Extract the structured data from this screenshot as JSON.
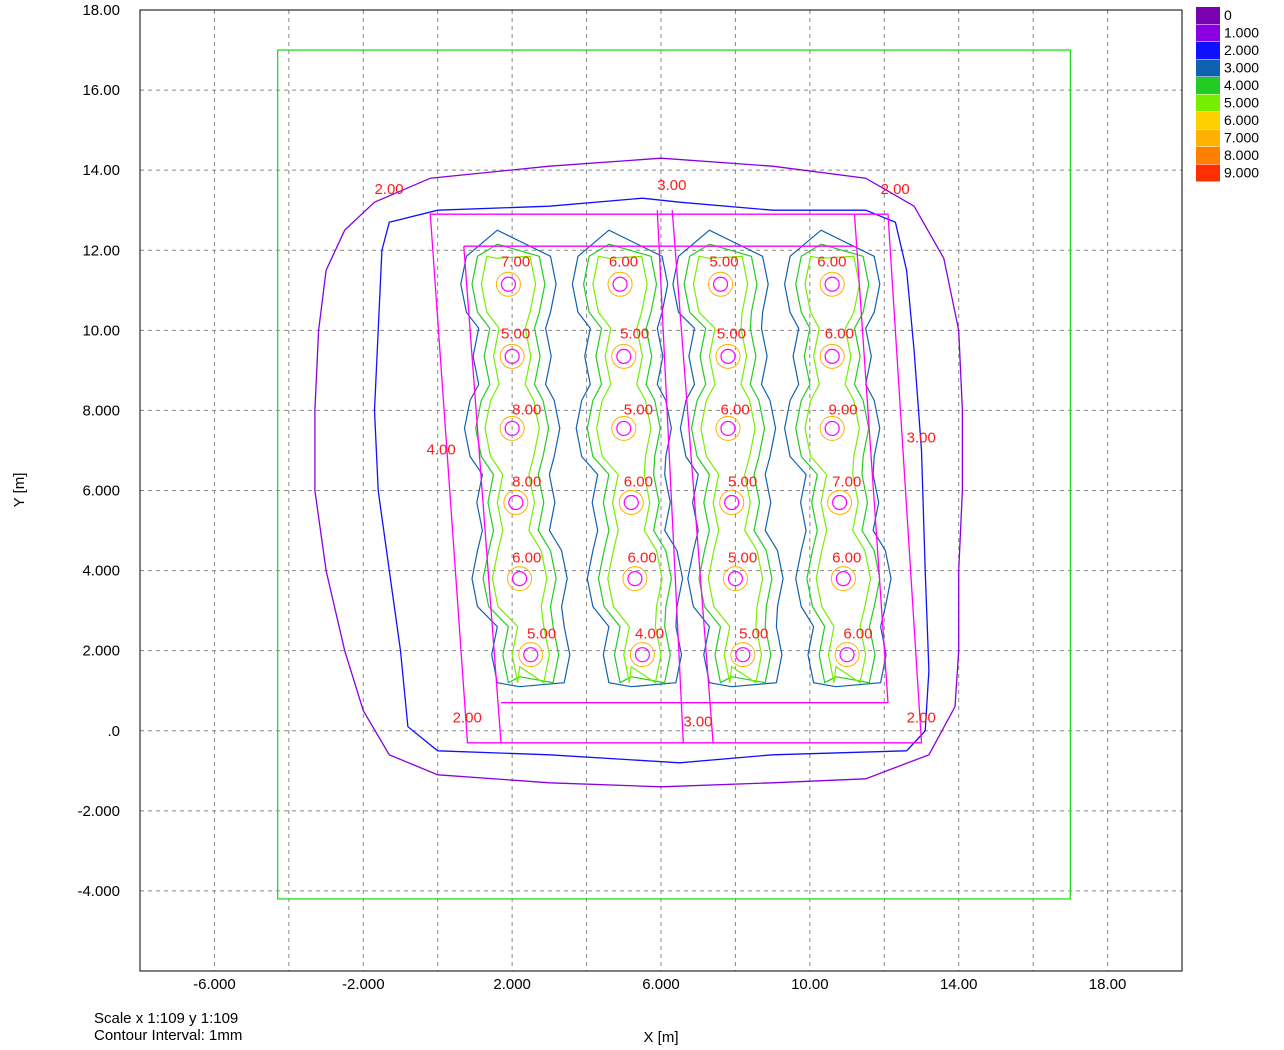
{
  "chart_data": {
    "type": "contour",
    "xlabel": "X [m]",
    "ylabel": "Y [m]",
    "xlim": [
      -8,
      20
    ],
    "ylim": [
      -6,
      18
    ],
    "x_ticks": [
      -6,
      -2,
      2,
      6,
      10,
      14,
      18
    ],
    "x_tick_labels": [
      "-6.000",
      "-2.000",
      "2.000",
      "6.000",
      "10.00",
      "14.00",
      "18.00"
    ],
    "y_ticks": [
      18,
      16,
      14,
      12,
      10,
      8,
      6,
      4,
      2,
      0,
      -2,
      -4
    ],
    "y_tick_labels": [
      "18.00",
      "16.00",
      "14.00",
      "12.00",
      "10.00",
      "8.000",
      "6.000",
      "4.000",
      "2.000",
      ".0",
      "-2.000",
      "-4.000"
    ],
    "grid": true,
    "legend_position": "top-right",
    "legend": [
      {
        "label": "0",
        "color": "#7a00b0"
      },
      {
        "label": "1.000",
        "color": "#8a00e0"
      },
      {
        "label": "2.000",
        "color": "#1010ff"
      },
      {
        "label": "3.000",
        "color": "#1060b0"
      },
      {
        "label": "4.000",
        "color": "#22cc22"
      },
      {
        "label": "5.000",
        "color": "#77ee00"
      },
      {
        "label": "6.000",
        "color": "#ffd000"
      },
      {
        "label": "7.000",
        "color": "#ffb000"
      },
      {
        "label": "8.000",
        "color": "#ff8000"
      },
      {
        "label": "9.000",
        "color": "#ff3000"
      }
    ],
    "boundary_rect": {
      "x": [
        -4.3,
        17.0
      ],
      "y": [
        -4.2,
        17.0
      ],
      "color": "#22dd22"
    },
    "outer_contours": [
      {
        "level": 1,
        "color": "#8a00e0",
        "points": [
          [
            -1.7,
            13.2
          ],
          [
            -0.2,
            13.8
          ],
          [
            3,
            14.1
          ],
          [
            6,
            14.3
          ],
          [
            9,
            14.1
          ],
          [
            11.5,
            13.8
          ],
          [
            12.8,
            13.1
          ],
          [
            13.6,
            11.8
          ],
          [
            14.0,
            10
          ],
          [
            14.1,
            8
          ],
          [
            14.1,
            6
          ],
          [
            14.0,
            4
          ],
          [
            14.0,
            2
          ],
          [
            13.9,
            0.6
          ],
          [
            13.2,
            -0.6
          ],
          [
            11.5,
            -1.2
          ],
          [
            9,
            -1.3
          ],
          [
            6,
            -1.4
          ],
          [
            3,
            -1.3
          ],
          [
            0,
            -1.1
          ],
          [
            -1.3,
            -0.6
          ],
          [
            -2.0,
            0.5
          ],
          [
            -2.5,
            2
          ],
          [
            -3.0,
            4
          ],
          [
            -3.3,
            6
          ],
          [
            -3.3,
            8
          ],
          [
            -3.2,
            10
          ],
          [
            -3.0,
            11.5
          ],
          [
            -2.5,
            12.5
          ]
        ]
      },
      {
        "level": 2,
        "color": "#1010ff",
        "points": [
          [
            -1.3,
            12.7
          ],
          [
            0,
            13.0
          ],
          [
            3,
            13.1
          ],
          [
            5.5,
            13.3
          ],
          [
            6.5,
            13.2
          ],
          [
            9,
            13.0
          ],
          [
            11.5,
            13.0
          ],
          [
            12.3,
            12.7
          ],
          [
            12.6,
            11.5
          ],
          [
            12.8,
            9.5
          ],
          [
            13.0,
            7
          ],
          [
            13.1,
            4
          ],
          [
            13.2,
            1.5
          ],
          [
            13.1,
            0
          ],
          [
            12.6,
            -0.5
          ],
          [
            9,
            -0.6
          ],
          [
            6.5,
            -0.8
          ],
          [
            3,
            -0.6
          ],
          [
            0,
            -0.5
          ],
          [
            -0.8,
            0.1
          ],
          [
            -1.0,
            2
          ],
          [
            -1.3,
            4
          ],
          [
            -1.6,
            6
          ],
          [
            -1.7,
            8
          ],
          [
            -1.6,
            10
          ],
          [
            -1.5,
            12
          ]
        ]
      }
    ],
    "rect_outline": {
      "color": "#ff00ff",
      "points": [
        [
          -0.2,
          12.9
        ],
        [
          12.1,
          12.9
        ],
        [
          13.0,
          -0.3
        ],
        [
          0.8,
          -0.3
        ]
      ]
    },
    "inner_rect": {
      "color": "#ff00ff",
      "points": [
        [
          0.7,
          12.1
        ],
        [
          11.2,
          12.1
        ],
        [
          12.1,
          0.7
        ],
        [
          1.7,
          0.7
        ]
      ]
    },
    "diagonal_lines": {
      "color": "#ff00ff",
      "lines": [
        [
          [
            0.7,
            12.1
          ],
          [
            1.7,
            -0.3
          ]
        ],
        [
          [
            5.9,
            13.0
          ],
          [
            6.6,
            -0.3
          ]
        ],
        [
          [
            6.3,
            13.0
          ],
          [
            7.4,
            -0.3
          ]
        ],
        [
          [
            11.2,
            12.9
          ],
          [
            12.1,
            0.7
          ]
        ]
      ]
    },
    "columns": [
      {
        "cx": [
          1.9,
          2.0,
          2.0,
          2.1,
          2.2,
          2.5
        ],
        "level": 3,
        "color": "#1060b0"
      },
      {
        "cx": [
          4.9,
          5.0,
          5.0,
          5.2,
          5.3,
          5.5
        ],
        "level": 3,
        "color": "#1060b0"
      },
      {
        "cx": [
          7.6,
          7.8,
          7.8,
          7.9,
          8.0,
          8.2
        ],
        "level": 3,
        "color": "#1060b0"
      },
      {
        "cx": [
          10.6,
          10.6,
          10.6,
          10.8,
          10.9,
          11.0
        ],
        "level": 3,
        "color": "#1060b0"
      }
    ],
    "peaks": [
      {
        "x": 1.9,
        "y": 11.15
      },
      {
        "x": 2.0,
        "y": 9.35
      },
      {
        "x": 2.0,
        "y": 7.55
      },
      {
        "x": 2.1,
        "y": 5.7
      },
      {
        "x": 2.2,
        "y": 3.8
      },
      {
        "x": 2.5,
        "y": 1.9
      },
      {
        "x": 4.9,
        "y": 11.15
      },
      {
        "x": 5.0,
        "y": 9.35
      },
      {
        "x": 5.0,
        "y": 7.55
      },
      {
        "x": 5.2,
        "y": 5.7
      },
      {
        "x": 5.3,
        "y": 3.8
      },
      {
        "x": 5.5,
        "y": 1.9
      },
      {
        "x": 7.6,
        "y": 11.15
      },
      {
        "x": 7.8,
        "y": 9.35
      },
      {
        "x": 7.8,
        "y": 7.55
      },
      {
        "x": 7.9,
        "y": 5.7
      },
      {
        "x": 8.0,
        "y": 3.8
      },
      {
        "x": 8.2,
        "y": 1.9
      },
      {
        "x": 10.6,
        "y": 11.15
      },
      {
        "x": 10.6,
        "y": 9.35
      },
      {
        "x": 10.6,
        "y": 7.55
      },
      {
        "x": 10.8,
        "y": 5.7
      },
      {
        "x": 10.9,
        "y": 3.8
      },
      {
        "x": 11.0,
        "y": 1.9
      }
    ],
    "contour_labels": [
      {
        "text": "2.00",
        "x": -1.7,
        "y": 13.4
      },
      {
        "text": "3.00",
        "x": 5.9,
        "y": 13.5
      },
      {
        "text": "2.00",
        "x": 11.9,
        "y": 13.4
      },
      {
        "text": "7.00",
        "x": 1.7,
        "y": 11.6
      },
      {
        "text": "6.00",
        "x": 4.6,
        "y": 11.6
      },
      {
        "text": "5.00",
        "x": 7.3,
        "y": 11.6
      },
      {
        "text": "6.00",
        "x": 10.2,
        "y": 11.6
      },
      {
        "text": "5.00",
        "x": 1.7,
        "y": 9.8
      },
      {
        "text": "5.00",
        "x": 4.9,
        "y": 9.8
      },
      {
        "text": "5.00",
        "x": 7.5,
        "y": 9.8
      },
      {
        "text": "6.00",
        "x": 10.4,
        "y": 9.8
      },
      {
        "text": "8.00",
        "x": 2.0,
        "y": 7.9
      },
      {
        "text": "5.00",
        "x": 5.0,
        "y": 7.9
      },
      {
        "text": "6.00",
        "x": 7.6,
        "y": 7.9
      },
      {
        "text": "9.00",
        "x": 10.5,
        "y": 7.9
      },
      {
        "text": "4.00",
        "x": -0.3,
        "y": 6.9
      },
      {
        "text": "3.00",
        "x": 12.6,
        "y": 7.2
      },
      {
        "text": "8.00",
        "x": 2.0,
        "y": 6.1
      },
      {
        "text": "6.00",
        "x": 5.0,
        "y": 6.1
      },
      {
        "text": "5.00",
        "x": 7.8,
        "y": 6.1
      },
      {
        "text": "7.00",
        "x": 10.6,
        "y": 6.1
      },
      {
        "text": "6.00",
        "x": 2.0,
        "y": 4.2
      },
      {
        "text": "6.00",
        "x": 5.1,
        "y": 4.2
      },
      {
        "text": "5.00",
        "x": 7.8,
        "y": 4.2
      },
      {
        "text": "6.00",
        "x": 10.6,
        "y": 4.2
      },
      {
        "text": "5.00",
        "x": 2.4,
        "y": 2.3
      },
      {
        "text": "4.00",
        "x": 5.3,
        "y": 2.3
      },
      {
        "text": "5.00",
        "x": 8.1,
        "y": 2.3
      },
      {
        "text": "6.00",
        "x": 10.9,
        "y": 2.3
      },
      {
        "text": "2.00",
        "x": 0.4,
        "y": 0.2
      },
      {
        "text": "3.00",
        "x": 6.6,
        "y": 0.1
      },
      {
        "text": "2.00",
        "x": 12.6,
        "y": 0.2
      }
    ]
  },
  "footer": {
    "scale": "Scale x 1:109  y 1:109",
    "contour_interval": "Contour Interval:  1mm"
  }
}
